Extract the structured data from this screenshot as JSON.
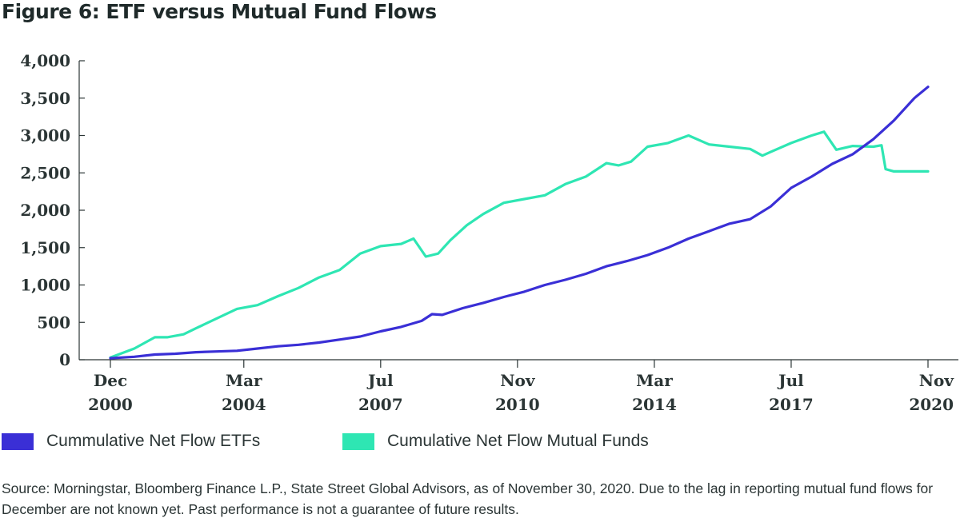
{
  "figure_title": "Figure 6: ETF versus Mutual Fund Flows",
  "source_note": "Source: Morningstar, Bloomberg Finance L.P., State Street Global Advisors, as of November 30, 2020. Due to the lag in reporting mutual fund flows for December are not known yet. Past performance is not a guarantee of future results.",
  "colors": {
    "etf": "#3a2fd6",
    "mutual": "#2ee6b3",
    "axis": "#2b3535",
    "text": "#2b3535"
  },
  "chart_data": {
    "type": "line",
    "title": "Figure 6: ETF versus Mutual Fund Flows",
    "xlabel": "",
    "ylabel": "",
    "ylim": [
      0,
      4000
    ],
    "xlim": [
      2000.917,
      2020.833
    ],
    "grid": false,
    "legend_position": "bottom",
    "y_ticks": [
      {
        "value": 0,
        "label": "0"
      },
      {
        "value": 500,
        "label": "500"
      },
      {
        "value": 1000,
        "label": "1,000"
      },
      {
        "value": 1500,
        "label": "1,500"
      },
      {
        "value": 2000,
        "label": "2,000"
      },
      {
        "value": 2500,
        "label": "2,500"
      },
      {
        "value": 3000,
        "label": "3,000"
      },
      {
        "value": 3500,
        "label": "3,500"
      },
      {
        "value": 4000,
        "label": "4,000"
      }
    ],
    "x_ticks": [
      {
        "value": 2000.917,
        "month": "Dec",
        "year": "2000"
      },
      {
        "value": 2004.167,
        "month": "Mar",
        "year": "2004"
      },
      {
        "value": 2007.5,
        "month": "Jul",
        "year": "2007"
      },
      {
        "value": 2010.833,
        "month": "Nov",
        "year": "2010"
      },
      {
        "value": 2014.167,
        "month": "Mar",
        "year": "2014"
      },
      {
        "value": 2017.5,
        "month": "Jul",
        "year": "2017"
      },
      {
        "value": 2020.833,
        "month": "Nov",
        "year": "2020"
      }
    ],
    "series": [
      {
        "name": "Cummulative Net Flow ETFs",
        "x": [
          2000.917,
          2001.5,
          2002.0,
          2002.5,
          2003.0,
          2003.5,
          2004.0,
          2004.5,
          2005.0,
          2005.5,
          2006.0,
          2006.5,
          2007.0,
          2007.5,
          2008.0,
          2008.5,
          2008.75,
          2009.0,
          2009.5,
          2010.0,
          2010.5,
          2011.0,
          2011.5,
          2012.0,
          2012.5,
          2013.0,
          2013.5,
          2014.0,
          2014.5,
          2015.0,
          2015.5,
          2016.0,
          2016.5,
          2017.0,
          2017.5,
          2018.0,
          2018.5,
          2019.0,
          2019.5,
          2020.0,
          2020.5,
          2020.833
        ],
        "y": [
          20,
          40,
          70,
          80,
          100,
          110,
          120,
          150,
          180,
          200,
          230,
          270,
          310,
          380,
          440,
          520,
          610,
          600,
          690,
          760,
          840,
          910,
          1000,
          1070,
          1150,
          1250,
          1320,
          1400,
          1500,
          1620,
          1720,
          1820,
          1880,
          2050,
          2300,
          2450,
          2620,
          2750,
          2950,
          3200,
          3500,
          3650
        ]
      },
      {
        "name": "Cumulative Net Flow Mutual Funds",
        "x": [
          2000.917,
          2001.5,
          2002.0,
          2002.3,
          2002.7,
          2003.0,
          2003.5,
          2004.0,
          2004.5,
          2005.0,
          2005.5,
          2006.0,
          2006.5,
          2007.0,
          2007.5,
          2008.0,
          2008.3,
          2008.6,
          2008.9,
          2009.2,
          2009.6,
          2010.0,
          2010.5,
          2011.0,
          2011.5,
          2012.0,
          2012.5,
          2013.0,
          2013.3,
          2013.6,
          2014.0,
          2014.5,
          2015.0,
          2015.5,
          2016.0,
          2016.5,
          2016.8,
          2017.0,
          2017.5,
          2018.0,
          2018.3,
          2018.6,
          2019.0,
          2019.5,
          2019.7,
          2019.8,
          2020.0,
          2020.5,
          2020.833
        ],
        "y": [
          30,
          150,
          300,
          300,
          340,
          420,
          550,
          680,
          730,
          850,
          960,
          1100,
          1200,
          1420,
          1520,
          1550,
          1620,
          1380,
          1420,
          1600,
          1800,
          1950,
          2100,
          2150,
          2200,
          2350,
          2450,
          2630,
          2600,
          2650,
          2850,
          2900,
          3000,
          2880,
          2850,
          2820,
          2730,
          2780,
          2900,
          3000,
          3050,
          2810,
          2860,
          2850,
          2870,
          2550,
          2520,
          2520,
          2520
        ]
      }
    ]
  }
}
